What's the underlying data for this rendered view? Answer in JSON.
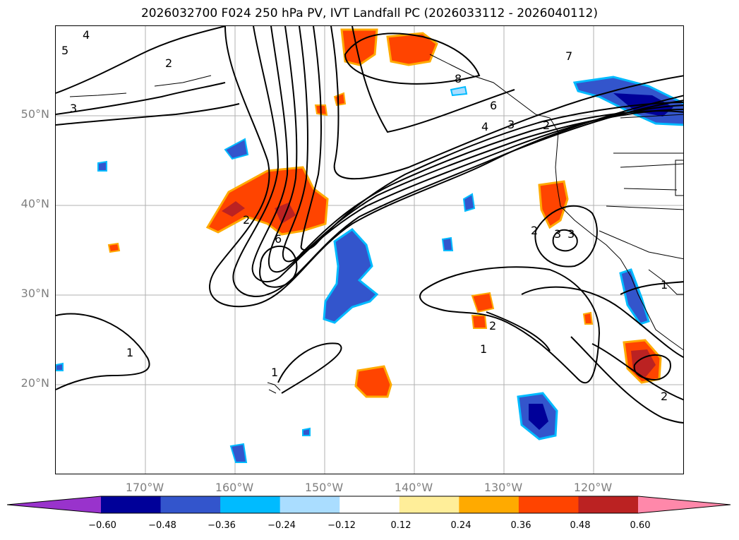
{
  "title": "2026032700 F024 250 hPa PV, IVT Landfall PC (2026033112 - 2026040112)",
  "lat_labels": [
    "50°N",
    "40°N",
    "30°N",
    "20°N"
  ],
  "lon_labels": [
    "170°W",
    "160°W",
    "150°W",
    "140°W",
    "130°W",
    "120°W"
  ],
  "contour_labels": [
    "5",
    "4",
    "2",
    "3",
    "2",
    "6",
    "1",
    "1",
    "2",
    "3",
    "7",
    "8",
    "6",
    "4",
    "3",
    "2",
    "3",
    "1",
    "2",
    "1",
    "2"
  ],
  "colorbar": {
    "ticks": [
      "−0.60",
      "−0.48",
      "−0.36",
      "−0.24",
      "−0.12",
      "0.12",
      "0.24",
      "0.36",
      "0.48",
      "0.60"
    ],
    "colors": [
      "#9933cc",
      "#000099",
      "#3355cc",
      "#00bbff",
      "#aaddff",
      "#ffffff",
      "#ffee99",
      "#ffaa00",
      "#ff4400",
      "#bb2222",
      "#ff88aa"
    ]
  },
  "map": {
    "projection": "cylindrical",
    "lon_range": [
      -180,
      -110
    ],
    "lat_range": [
      10,
      60
    ],
    "gridlines": true,
    "fill_colors": {
      "neg_strong": "#000099",
      "neg_mid": "#3355cc",
      "neg_light": "#00bbff",
      "neg_pale": "#aaddff",
      "pos_pale": "#ffee99",
      "pos_light": "#ffaa00",
      "pos_mid": "#ff4400",
      "pos_strong": "#bb2222"
    }
  }
}
